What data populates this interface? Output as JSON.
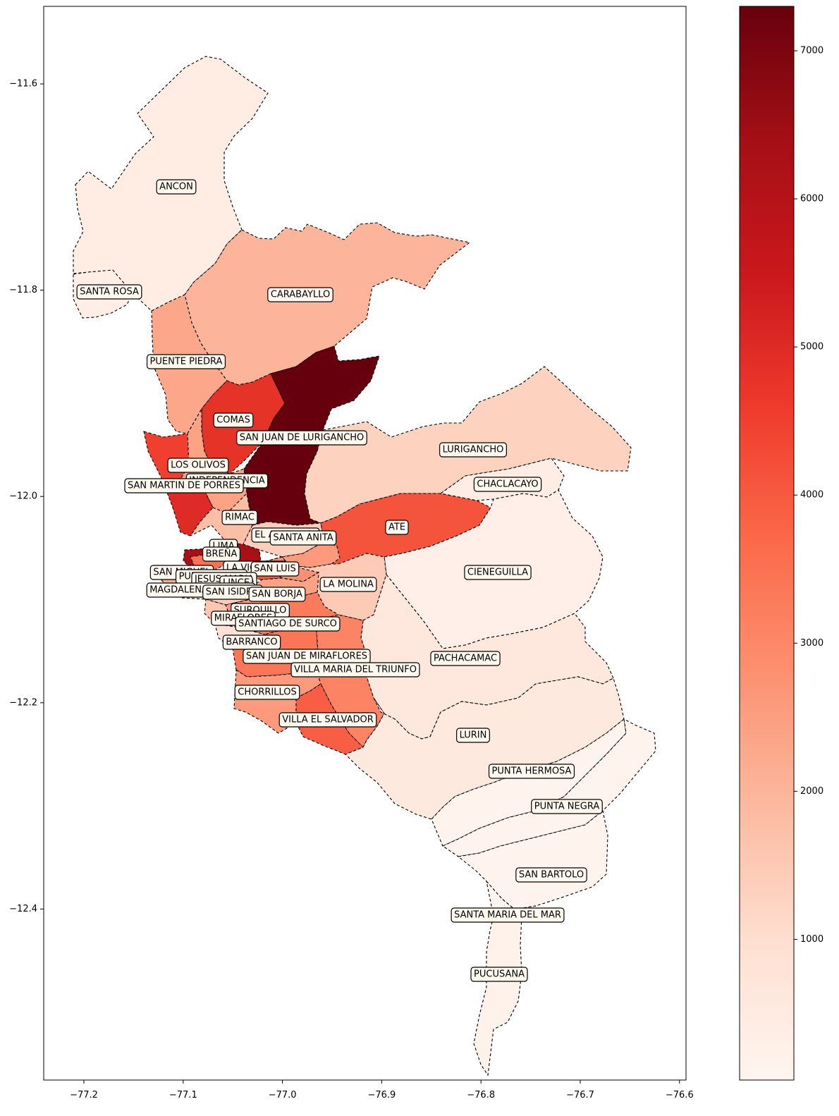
{
  "chart_data": {
    "type": "choropleth",
    "title": "",
    "xlabel": "",
    "ylabel": "",
    "xlim": [
      -77.225,
      -76.595
    ],
    "ylim": [
      -12.58,
      -11.525
    ],
    "x_ticks": [
      "−77.2",
      "−77.1",
      "−77.0",
      "−76.9",
      "−76.8",
      "−76.7",
      "−76.6"
    ],
    "y_ticks": [
      "−11.6",
      "−11.8",
      "−12.0",
      "−12.2",
      "−12.4"
    ],
    "colorbar": {
      "colormap": "Reds",
      "min": 50,
      "max": 7300,
      "ticks": [
        "1000",
        "2000",
        "3000",
        "4000",
        "5000",
        "6000",
        "7000"
      ]
    },
    "districts": [
      {
        "name": "ANCON",
        "value": 450
      },
      {
        "name": "SANTA ROSA",
        "value": 350
      },
      {
        "name": "CARABAYLLO",
        "value": 2000
      },
      {
        "name": "PUENTE PIEDRA",
        "value": 2300
      },
      {
        "name": "COMAS",
        "value": 4800
      },
      {
        "name": "SAN JUAN DE LURIGANCHO",
        "value": 7300
      },
      {
        "name": "LURIGANCHO",
        "value": 1300
      },
      {
        "name": "CHACLACAYO",
        "value": 400
      },
      {
        "name": "LOS OLIVOS",
        "value": 4500
      },
      {
        "name": "INDEPENDENCIA",
        "value": 2400
      },
      {
        "name": "SAN MARTIN DE PORRES",
        "value": 5000
      },
      {
        "name": "RIMAC",
        "value": 1800
      },
      {
        "name": "EL AGUSTINO",
        "value": 1400
      },
      {
        "name": "SANTA ANITA",
        "value": 2600
      },
      {
        "name": "ATE",
        "value": 4100
      },
      {
        "name": "LIMA",
        "value": 6300
      },
      {
        "name": "BREÑA",
        "value": 3500
      },
      {
        "name": "LA VICTORIA",
        "value": 4000
      },
      {
        "name": "SAN LUIS",
        "value": 2800
      },
      {
        "name": "SAN MIGUEL",
        "value": 2200
      },
      {
        "name": "PUEBLO LIBRE",
        "value": 1500
      },
      {
        "name": "JESUS MARIA",
        "value": 1600
      },
      {
        "name": "LINCE",
        "value": 1900
      },
      {
        "name": "MAGDALENA DEL MAR",
        "value": 1200
      },
      {
        "name": "SAN ISIDRO",
        "value": 1500
      },
      {
        "name": "CIENEGUILLA",
        "value": 300
      },
      {
        "name": "LA MOLINA",
        "value": 1500
      },
      {
        "name": "SAN BORJA",
        "value": 2400
      },
      {
        "name": "SURQUILLO",
        "value": 2600
      },
      {
        "name": "MIRAFLORES",
        "value": 1600
      },
      {
        "name": "SANTIAGO DE SURCO",
        "value": 3300
      },
      {
        "name": "BARRANCO",
        "value": 900
      },
      {
        "name": "PACHACAMAC",
        "value": 600
      },
      {
        "name": "SAN JUAN DE MIRAFLORES",
        "value": 3400
      },
      {
        "name": "VILLA MARIA DEL TRIUNFO",
        "value": 3100
      },
      {
        "name": "CHORRILLOS",
        "value": 2600
      },
      {
        "name": "VILLA EL SALVADOR",
        "value": 3900
      },
      {
        "name": "LURIN",
        "value": 550
      },
      {
        "name": "PUNTA HERMOSA",
        "value": 150
      },
      {
        "name": "PUNTA NEGRA",
        "value": 120
      },
      {
        "name": "SAN BARTOLO",
        "value": 130
      },
      {
        "name": "SANTA MARIA DEL MAR",
        "value": 60
      },
      {
        "name": "PUCUSANA",
        "value": 200
      }
    ]
  }
}
